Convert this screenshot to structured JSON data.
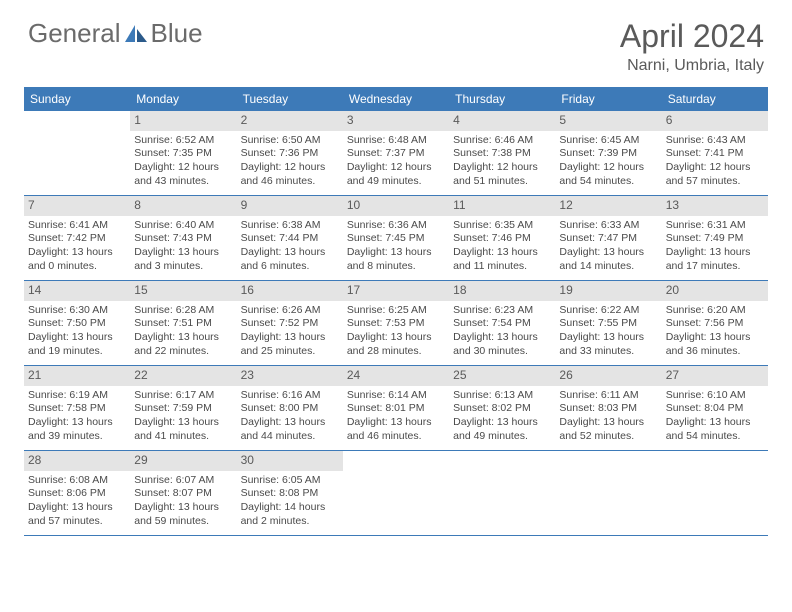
{
  "logo": {
    "text1": "General",
    "text2": "Blue"
  },
  "title": "April 2024",
  "location": "Narni, Umbria, Italy",
  "colors": {
    "header_bg": "#3d7ab8",
    "header_text": "#ffffff",
    "daynum_bg": "#e4e4e4",
    "body_text": "#4a4a4a",
    "title_text": "#5a5a5a",
    "row_border": "#3d7ab8"
  },
  "day_names": [
    "Sunday",
    "Monday",
    "Tuesday",
    "Wednesday",
    "Thursday",
    "Friday",
    "Saturday"
  ],
  "weeks": [
    [
      {
        "n": "",
        "sr": "",
        "ss": "",
        "dl": ""
      },
      {
        "n": "1",
        "sr": "6:52 AM",
        "ss": "7:35 PM",
        "dl": "12 hours and 43 minutes."
      },
      {
        "n": "2",
        "sr": "6:50 AM",
        "ss": "7:36 PM",
        "dl": "12 hours and 46 minutes."
      },
      {
        "n": "3",
        "sr": "6:48 AM",
        "ss": "7:37 PM",
        "dl": "12 hours and 49 minutes."
      },
      {
        "n": "4",
        "sr": "6:46 AM",
        "ss": "7:38 PM",
        "dl": "12 hours and 51 minutes."
      },
      {
        "n": "5",
        "sr": "6:45 AM",
        "ss": "7:39 PM",
        "dl": "12 hours and 54 minutes."
      },
      {
        "n": "6",
        "sr": "6:43 AM",
        "ss": "7:41 PM",
        "dl": "12 hours and 57 minutes."
      }
    ],
    [
      {
        "n": "7",
        "sr": "6:41 AM",
        "ss": "7:42 PM",
        "dl": "13 hours and 0 minutes."
      },
      {
        "n": "8",
        "sr": "6:40 AM",
        "ss": "7:43 PM",
        "dl": "13 hours and 3 minutes."
      },
      {
        "n": "9",
        "sr": "6:38 AM",
        "ss": "7:44 PM",
        "dl": "13 hours and 6 minutes."
      },
      {
        "n": "10",
        "sr": "6:36 AM",
        "ss": "7:45 PM",
        "dl": "13 hours and 8 minutes."
      },
      {
        "n": "11",
        "sr": "6:35 AM",
        "ss": "7:46 PM",
        "dl": "13 hours and 11 minutes."
      },
      {
        "n": "12",
        "sr": "6:33 AM",
        "ss": "7:47 PM",
        "dl": "13 hours and 14 minutes."
      },
      {
        "n": "13",
        "sr": "6:31 AM",
        "ss": "7:49 PM",
        "dl": "13 hours and 17 minutes."
      }
    ],
    [
      {
        "n": "14",
        "sr": "6:30 AM",
        "ss": "7:50 PM",
        "dl": "13 hours and 19 minutes."
      },
      {
        "n": "15",
        "sr": "6:28 AM",
        "ss": "7:51 PM",
        "dl": "13 hours and 22 minutes."
      },
      {
        "n": "16",
        "sr": "6:26 AM",
        "ss": "7:52 PM",
        "dl": "13 hours and 25 minutes."
      },
      {
        "n": "17",
        "sr": "6:25 AM",
        "ss": "7:53 PM",
        "dl": "13 hours and 28 minutes."
      },
      {
        "n": "18",
        "sr": "6:23 AM",
        "ss": "7:54 PM",
        "dl": "13 hours and 30 minutes."
      },
      {
        "n": "19",
        "sr": "6:22 AM",
        "ss": "7:55 PM",
        "dl": "13 hours and 33 minutes."
      },
      {
        "n": "20",
        "sr": "6:20 AM",
        "ss": "7:56 PM",
        "dl": "13 hours and 36 minutes."
      }
    ],
    [
      {
        "n": "21",
        "sr": "6:19 AM",
        "ss": "7:58 PM",
        "dl": "13 hours and 39 minutes."
      },
      {
        "n": "22",
        "sr": "6:17 AM",
        "ss": "7:59 PM",
        "dl": "13 hours and 41 minutes."
      },
      {
        "n": "23",
        "sr": "6:16 AM",
        "ss": "8:00 PM",
        "dl": "13 hours and 44 minutes."
      },
      {
        "n": "24",
        "sr": "6:14 AM",
        "ss": "8:01 PM",
        "dl": "13 hours and 46 minutes."
      },
      {
        "n": "25",
        "sr": "6:13 AM",
        "ss": "8:02 PM",
        "dl": "13 hours and 49 minutes."
      },
      {
        "n": "26",
        "sr": "6:11 AM",
        "ss": "8:03 PM",
        "dl": "13 hours and 52 minutes."
      },
      {
        "n": "27",
        "sr": "6:10 AM",
        "ss": "8:04 PM",
        "dl": "13 hours and 54 minutes."
      }
    ],
    [
      {
        "n": "28",
        "sr": "6:08 AM",
        "ss": "8:06 PM",
        "dl": "13 hours and 57 minutes."
      },
      {
        "n": "29",
        "sr": "6:07 AM",
        "ss": "8:07 PM",
        "dl": "13 hours and 59 minutes."
      },
      {
        "n": "30",
        "sr": "6:05 AM",
        "ss": "8:08 PM",
        "dl": "14 hours and 2 minutes."
      },
      {
        "n": "",
        "sr": "",
        "ss": "",
        "dl": ""
      },
      {
        "n": "",
        "sr": "",
        "ss": "",
        "dl": ""
      },
      {
        "n": "",
        "sr": "",
        "ss": "",
        "dl": ""
      },
      {
        "n": "",
        "sr": "",
        "ss": "",
        "dl": ""
      }
    ]
  ],
  "labels": {
    "sunrise": "Sunrise:",
    "sunset": "Sunset:",
    "daylight": "Daylight:"
  }
}
